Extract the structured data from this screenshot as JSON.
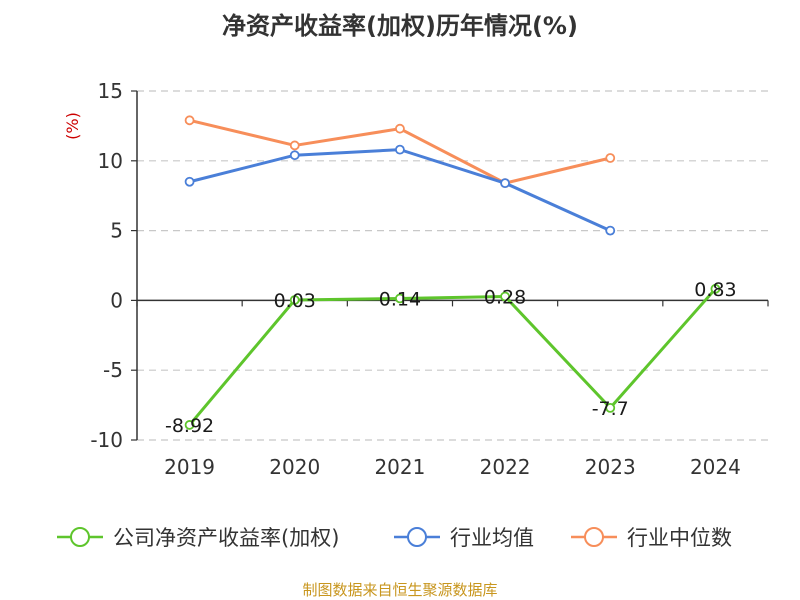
{
  "chart_data": {
    "type": "line",
    "title": "净资产收益率(加权)历年情况(%)",
    "ylabel": "(%)",
    "categories": [
      "2019",
      "2020",
      "2021",
      "2022",
      "2023",
      "2024"
    ],
    "ylim": [
      -10,
      15
    ],
    "yticks": [
      15,
      10,
      5,
      0,
      -5,
      -10
    ],
    "grid": true,
    "legend_position": "bottom",
    "series": [
      {
        "name": "公司净资产收益率(加权)",
        "color": "#5ec52c",
        "values": [
          -8.92,
          0.03,
          0.14,
          0.28,
          -7.7,
          0.83
        ],
        "labels": [
          "-8.92",
          "0.03",
          "0.14",
          "0.28",
          "-7.7",
          "0.83"
        ]
      },
      {
        "name": "行业均值",
        "color": "#4a7fd8",
        "values": [
          8.5,
          10.4,
          10.8,
          8.4,
          5.0,
          null
        ]
      },
      {
        "name": "行业中位数",
        "color": "#f78e5a",
        "values": [
          12.9,
          11.1,
          12.3,
          8.4,
          10.2,
          null
        ]
      }
    ]
  },
  "source_note": "制图数据来自恒生聚源数据库"
}
